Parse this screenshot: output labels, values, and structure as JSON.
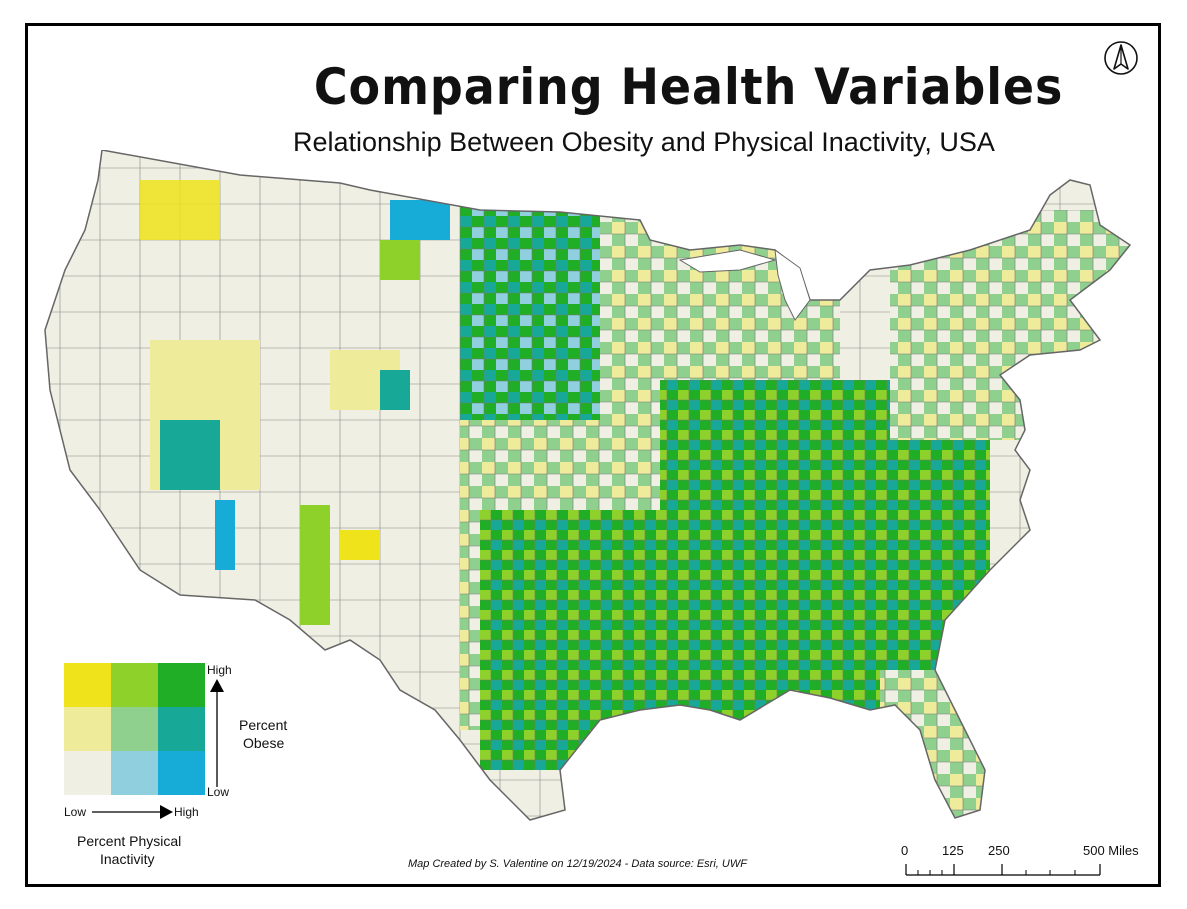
{
  "title": "Comparing Health Variables",
  "subtitle": "Relationship Between Obesity and Physical Inactivity, USA",
  "north_arrow": {
    "icon": "north-arrow-icon"
  },
  "legend": {
    "colors": [
      [
        "#efe31b",
        "#8fd12b",
        "#1fae25"
      ],
      [
        "#eeeb9b",
        "#8fd08f",
        "#17a898"
      ],
      [
        "#efefe3",
        "#8fcfde",
        "#17acd8"
      ]
    ],
    "y_high": "High",
    "y_low": "Low",
    "y_title_line1": "Percent",
    "y_title_line2": "Obese",
    "x_low": "Low",
    "x_high": "High",
    "x_title_line1": "Percent Physical",
    "x_title_line2": "Inactivity"
  },
  "credit": "Map Created by S. Valentine on 12/19/2024 - Data source: Esri, UWF",
  "scale_bar": {
    "labels": [
      "0",
      "125",
      "250",
      "500 Miles"
    ]
  }
}
